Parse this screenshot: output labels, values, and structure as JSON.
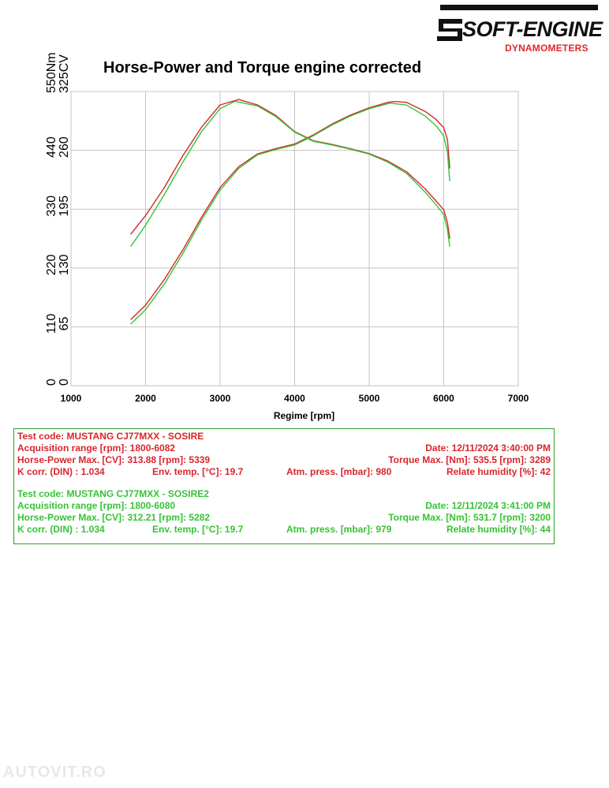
{
  "logo": {
    "main": "SOFT-ENGINE",
    "sub": "DYNAMOMETERS"
  },
  "chart_data": {
    "type": "line",
    "title": "Horse-Power and Torque engine corrected",
    "xlabel": "Regime [rpm]",
    "x_ticks": [
      "1000",
      "2000",
      "3000",
      "4000",
      "5000",
      "6000",
      "7000"
    ],
    "xlim": [
      1000,
      7000
    ],
    "torque_axis": {
      "unit": "550Nm",
      "ticks": [
        "0",
        "110",
        "220",
        "330",
        "440"
      ],
      "ylim": [
        0,
        550
      ]
    },
    "power_axis": {
      "unit": "325CV",
      "ticks": [
        "0",
        "65",
        "130",
        "195",
        "260"
      ],
      "ylim": [
        0,
        325
      ]
    },
    "grid": true,
    "series": [
      {
        "color": "#d7262d",
        "axis": "torque",
        "x": [
          1800,
          2000,
          2250,
          2500,
          2750,
          3000,
          3250,
          3500,
          3750,
          4000,
          4250,
          4500,
          4750,
          5000,
          5250,
          5500,
          5750,
          5900,
          6000,
          6050,
          6082
        ],
        "y": [
          283,
          318,
          370,
          430,
          483,
          525,
          535,
          525,
          505,
          475,
          458,
          451,
          443,
          434,
          420,
          400,
          368,
          345,
          329,
          305,
          275
        ]
      },
      {
        "color": "#d7262d",
        "axis": "power",
        "x": [
          1800,
          2000,
          2250,
          2500,
          2750,
          3000,
          3250,
          3500,
          3750,
          4000,
          4250,
          4500,
          4750,
          5000,
          5250,
          5339,
          5500,
          5750,
          5900,
          6000,
          6050,
          6082
        ],
        "y": [
          73,
          89,
          117,
          150,
          186,
          219,
          242,
          256,
          262,
          267,
          277,
          289,
          299,
          307,
          313,
          313.9,
          313,
          303,
          294,
          285,
          272,
          240
        ]
      },
      {
        "color": "#35c335",
        "axis": "torque",
        "x": [
          1800,
          2000,
          2250,
          2500,
          2750,
          3000,
          3200,
          3500,
          3750,
          4000,
          4250,
          4500,
          4750,
          5000,
          5250,
          5500,
          5750,
          5900,
          6000,
          6050,
          6080
        ],
        "y": [
          260,
          300,
          357,
          418,
          475,
          518,
          531.7,
          523,
          503,
          474,
          457,
          450,
          442,
          433,
          418,
          397,
          362,
          338,
          320,
          292,
          260
        ]
      },
      {
        "color": "#35c335",
        "axis": "power",
        "x": [
          1800,
          2000,
          2250,
          2500,
          2750,
          3000,
          3250,
          3500,
          3750,
          4000,
          4250,
          4500,
          4750,
          5000,
          5282,
          5500,
          5750,
          5900,
          6000,
          6050,
          6080
        ],
        "y": [
          68,
          84,
          112,
          146,
          183,
          216,
          240,
          255,
          261,
          266,
          276,
          288,
          298,
          306,
          312.2,
          310,
          298,
          287,
          276,
          258,
          226
        ]
      }
    ]
  },
  "tests": [
    {
      "color": "#d7262d",
      "code": "Test code: MUSTANG CJ77MXX - SOSIRE",
      "range": "Acquisition range [rpm]: 1800-6082",
      "date": "Date: 12/11/2024   3:40:00 PM",
      "hp": "Horse-Power Max. [CV]: 313.88   [rpm]: 5339",
      "torque": "Torque Max. [Nm]: 535.5   [rpm]: 3289",
      "kcorr": "K corr. (DIN) : 1.034",
      "temp": "Env. temp. [°C]: 19.7",
      "press": "Atm. press. [mbar]: 980",
      "hum": "Relate humidity [%]: 42"
    },
    {
      "color": "#35c335",
      "code": "Test code: MUSTANG CJ77MXX - SOSIRE2",
      "range": "Acquisition range [rpm]: 1800-6080",
      "date": "Date: 12/11/2024   3:41:00 PM",
      "hp": "Horse-Power Max. [CV]: 312.21   [rpm]: 5282",
      "torque": "Torque Max. [Nm]: 531.7   [rpm]: 3200",
      "kcorr": "K corr. (DIN) : 1.034",
      "temp": "Env. temp. [°C]: 19.7",
      "press": "Atm. press. [mbar]: 979",
      "hum": "Relate humidity [%]: 44"
    }
  ],
  "watermark": "AUTOVIT.RO"
}
